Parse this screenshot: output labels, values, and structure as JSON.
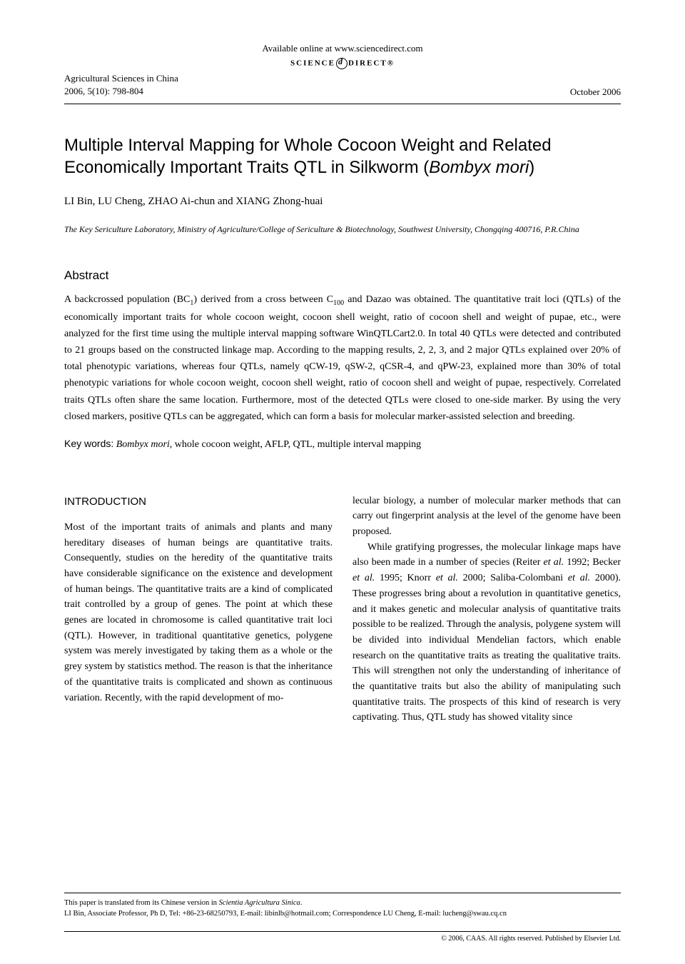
{
  "header": {
    "available_online": "Available online at www.sciencedirect.com",
    "logo_left": "SCIENCE",
    "logo_right": "DIRECT®",
    "journal_name": "Agricultural Sciences in China",
    "citation": "2006, 5(10): 798-804",
    "issue_date": "October 2006"
  },
  "title": {
    "main_a": "Multiple Interval Mapping for Whole Cocoon Weight and Related Economically Important Traits QTL in Silkworm (",
    "italic": "Bombyx mori",
    "main_b": ")"
  },
  "authors": "LI Bin, LU Cheng, ZHAO Ai-chun and XIANG Zhong-huai",
  "affiliation": "The Key Sericulture Laboratory, Ministry of Agriculture/College of Sericulture & Biotechnology, Southwest University, Chongqing 400716, P.R.China",
  "abstract": {
    "heading": "Abstract",
    "p1a": "A backcrossed population (BC",
    "p1sub1": "1",
    "p1b": ") derived from a cross between C",
    "p1sub2": "100",
    "p1c": " and Dazao was obtained.  The quantitative trait loci (QTLs) of the economically important traits for whole cocoon weight, cocoon shell weight, ratio of cocoon shell and weight of pupae, etc., were analyzed for the first time using the multiple interval mapping software WinQTLCart2.0.  In total 40 QTLs were detected and contributed to 21 groups based on the constructed linkage map.  According to the mapping results, 2, 2, 3, and 2 major QTLs explained over 20% of total phenotypic variations, whereas four QTLs, namely qCW-19, qSW-2, qCSR-4, and qPW-23, explained more than 30% of total phenotypic variations for whole cocoon weight, cocoon shell weight, ratio of cocoon shell and weight of pupae, respectively.  Correlated traits QTLs often share the same location. Furthermore, most of the detected QTLs were closed to one-side marker.  By using the very closed markers, positive QTLs can be aggregated, which can form a basis for molecular marker-assisted selection and breeding."
  },
  "keywords": {
    "label": "Key words:",
    "italic": "Bombyx mori",
    "rest": ", whole cocoon weight, AFLP, QTL, multiple interval mapping"
  },
  "intro": {
    "heading": "INTRODUCTION",
    "col1_para": "Most of the important traits of animals and plants and many hereditary diseases of human beings are quantitative traits.  Consequently, studies on the heredity of the quantitative traits have considerable significance on the existence and development of human beings.  The quantitative traits are a kind of complicated trait controlled by a group of genes.  The point at which these genes are located in chromosome is called quantitative trait loci (QTL).  However, in traditional quantitative genetics, polygene system was merely investigated by taking them as a whole or the grey system by statistics method.  The reason is that the inheritance of the quantitative traits is complicated and shown as continuous variation.  Recently, with the rapid development of mo-",
    "col2_para1": "lecular biology, a number of molecular marker methods that can carry out fingerprint analysis at the level of the genome have been proposed.",
    "col2_para2a": "While gratifying progresses, the molecular linkage maps have also been made in a number of species (Reiter ",
    "col2_ital1": "et al.",
    "col2_para2b": " 1992; Becker ",
    "col2_ital2": "et al.",
    "col2_para2c": " 1995; Knorr ",
    "col2_ital3": "et al.",
    "col2_para2d": " 2000; Saliba-Colombani ",
    "col2_ital4": "et al.",
    "col2_para2e": " 2000).  These progresses bring about a revolution in quantitative genetics, and it makes genetic and molecular analysis of quantitative traits possible to be realized.  Through the analysis, polygene system will be divided into individual Mendelian factors, which enable research on the quantitative traits as treating the qualitative traits.  This will strengthen not only the understanding of inheritance of the quantitative traits but also the ability of manipulating such quantitative traits.  The prospects of this kind of research is very captivating.  Thus, QTL study has showed vitality since"
  },
  "footnotes": {
    "line1a": "This paper is translated from its Chinese version in ",
    "line1_ital": "Scientia Agricultura Sinica",
    "line1b": ".",
    "line2": "LI Bin, Associate Professor, Ph D, Tel: +86-23-68250793, E-mail: libinlb@hotmail.com; Correspondence LU Cheng, E-mail: lucheng@swau.cq.cn"
  },
  "copyright": "© 2006, CAAS. All rights reserved. Published by Elsevier Ltd."
}
